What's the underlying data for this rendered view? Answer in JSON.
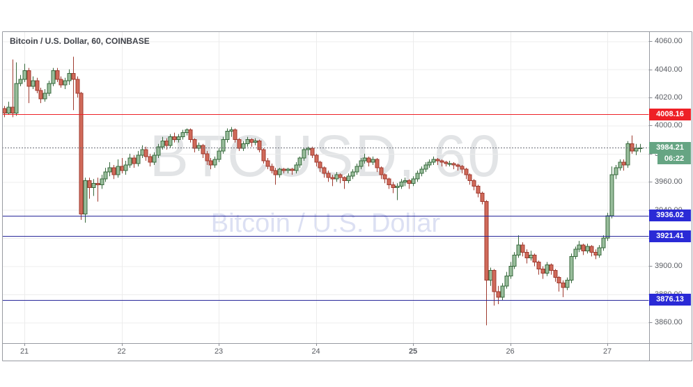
{
  "title": "Bitcoin / U.S. Dollar, 60, COINBASE",
  "watermark": {
    "line1": "BTCUSD, 60",
    "line2": "Bitcoin / U.S. Dollar"
  },
  "colors": {
    "background": "#ffffff",
    "grid": "#ececec",
    "frame": "#979aa1",
    "axis_text": "#5a5d63",
    "up_fill": "#98bd9b",
    "up_border": "#37693c",
    "down_fill": "#d06a5a",
    "down_border": "#9f3a2f",
    "resistance_line": "#ee2026",
    "resistance_label_bg": "#ee2026",
    "support_line": "#28289a",
    "support_label_bg": "#2a2ad6",
    "current_line": "#6a6d78",
    "current_label_bg": "#66a583"
  },
  "chart_data": {
    "type": "candlestick",
    "symbol": "BTCUSD",
    "interval": "60",
    "exchange": "COINBASE",
    "title": "Bitcoin / U.S. Dollar, 60, COINBASE",
    "y_ticks": [
      4060,
      4040,
      4020,
      4000,
      3980,
      3960,
      3940,
      3920,
      3900,
      3880,
      3860
    ],
    "y_range_visible": [
      3852,
      4064
    ],
    "x_ticks": [
      {
        "label": "21",
        "index": 5,
        "bold": false
      },
      {
        "label": "22",
        "index": 29,
        "bold": false
      },
      {
        "label": "23",
        "index": 53,
        "bold": false
      },
      {
        "label": "24",
        "index": 77,
        "bold": false
      },
      {
        "label": "25",
        "index": 101,
        "bold": true
      },
      {
        "label": "26",
        "index": 125,
        "bold": false
      },
      {
        "label": "27",
        "index": 149,
        "bold": false
      }
    ],
    "levels": [
      {
        "price": 4008.16,
        "label": "4008.16",
        "kind": "resistance"
      },
      {
        "price": 3936.02,
        "label": "3936.02",
        "kind": "support"
      },
      {
        "price": 3921.41,
        "label": "3921.41",
        "kind": "support"
      },
      {
        "price": 3876.13,
        "label": "3876.13",
        "kind": "support"
      }
    ],
    "current": {
      "price": 3984.21,
      "label": "3984.21",
      "countdown": "06:22"
    },
    "candles": [
      [
        4012,
        4014,
        4006,
        4009
      ],
      [
        4009,
        4017,
        4008,
        4013
      ],
      [
        4013,
        4047,
        4006,
        4009
      ],
      [
        4009,
        4045,
        4007,
        4030
      ],
      [
        4030,
        4036,
        4028,
        4033
      ],
      [
        4033,
        4044,
        4031,
        4039
      ],
      [
        4039,
        4041,
        4016,
        4028
      ],
      [
        4028,
        4035,
        4026,
        4032
      ],
      [
        4032,
        4034,
        4023,
        4025
      ],
      [
        4025,
        4027,
        4016,
        4019
      ],
      [
        4019,
        4026,
        4017,
        4023
      ],
      [
        4023,
        4032,
        4021,
        4030
      ],
      [
        4030,
        4041,
        4028,
        4039
      ],
      [
        4039,
        4041,
        4031,
        4033
      ],
      [
        4033,
        4035,
        4027,
        4029
      ],
      [
        4029,
        4034,
        4026,
        4032
      ],
      [
        4032,
        4040,
        4029,
        4037
      ],
      [
        4037,
        4049,
        4011,
        4033
      ],
      [
        4033,
        4035,
        4020,
        4023
      ],
      [
        4023,
        4024,
        3933,
        3937
      ],
      [
        3937,
        3963,
        3931,
        3961
      ],
      [
        3961,
        3963,
        3948,
        3956
      ],
      [
        3956,
        3962,
        3950,
        3959
      ],
      [
        3959,
        3963,
        3946,
        3958
      ],
      [
        3958,
        3965,
        3955,
        3962
      ],
      [
        3962,
        3970,
        3960,
        3967
      ],
      [
        3967,
        3974,
        3964,
        3970
      ],
      [
        3970,
        3972,
        3962,
        3965
      ],
      [
        3965,
        3976,
        3963,
        3971
      ],
      [
        3971,
        3977,
        3966,
        3968
      ],
      [
        3968,
        3975,
        3965,
        3972
      ],
      [
        3972,
        3980,
        3970,
        3977
      ],
      [
        3977,
        3979,
        3970,
        3973
      ],
      [
        3973,
        3982,
        3971,
        3979
      ],
      [
        3979,
        3986,
        3977,
        3983
      ],
      [
        3983,
        3985,
        3975,
        3978
      ],
      [
        3978,
        3980,
        3971,
        3974
      ],
      [
        3974,
        3981,
        3972,
        3979
      ],
      [
        3979,
        3987,
        3977,
        3985
      ],
      [
        3985,
        3992,
        3983,
        3989
      ],
      [
        3989,
        3991,
        3983,
        3986
      ],
      [
        3986,
        3994,
        3984,
        3992
      ],
      [
        3992,
        3995,
        3988,
        3990
      ],
      [
        3990,
        3994,
        3988,
        3992
      ],
      [
        3992,
        3997,
        3990,
        3995
      ],
      [
        3995,
        3998,
        3993,
        3997
      ],
      [
        3997,
        3998,
        3988,
        3990
      ],
      [
        3990,
        3991,
        3981,
        3984
      ],
      [
        3984,
        3988,
        3982,
        3986
      ],
      [
        3986,
        3987,
        3977,
        3980
      ],
      [
        3980,
        3982,
        3972,
        3975
      ],
      [
        3975,
        3977,
        3969,
        3972
      ],
      [
        3972,
        3978,
        3970,
        3976
      ],
      [
        3976,
        3984,
        3974,
        3982
      ],
      [
        3982,
        3992,
        3980,
        3990
      ],
      [
        3990,
        3998,
        3988,
        3996
      ],
      [
        3996,
        3999,
        3992,
        3997
      ],
      [
        3997,
        3998,
        3988,
        3990
      ],
      [
        3990,
        3991,
        3982,
        3984
      ],
      [
        3984,
        3989,
        3982,
        3987
      ],
      [
        3987,
        3992,
        3985,
        3990
      ],
      [
        3990,
        3991,
        3985,
        3988
      ],
      [
        3988,
        3991,
        3986,
        3989
      ],
      [
        3989,
        3990,
        3981,
        3983
      ],
      [
        3983,
        3984,
        3973,
        3975
      ],
      [
        3975,
        3977,
        3969,
        3971
      ],
      [
        3971,
        3973,
        3966,
        3968
      ],
      [
        3968,
        3970,
        3958,
        3965
      ],
      [
        3965,
        3970,
        3963,
        3969
      ],
      [
        3969,
        3970,
        3966,
        3968
      ],
      [
        3968,
        3970,
        3966,
        3969
      ],
      [
        3969,
        3970,
        3965,
        3968
      ],
      [
        3968,
        3974,
        3966,
        3972
      ],
      [
        3972,
        3978,
        3970,
        3977
      ],
      [
        3977,
        3984,
        3975,
        3983
      ],
      [
        3983,
        3985,
        3979,
        3984
      ],
      [
        3984,
        3985,
        3977,
        3979
      ],
      [
        3979,
        3980,
        3971,
        3974
      ],
      [
        3974,
        3975,
        3967,
        3970
      ],
      [
        3970,
        3971,
        3963,
        3966
      ],
      [
        3966,
        3968,
        3960,
        3963
      ],
      [
        3963,
        3965,
        3957,
        3962
      ],
      [
        3962,
        3967,
        3960,
        3965
      ],
      [
        3965,
        3966,
        3959,
        3963
      ],
      [
        3963,
        3964,
        3955,
        3961
      ],
      [
        3961,
        3966,
        3959,
        3964
      ],
      [
        3964,
        3969,
        3962,
        3967
      ],
      [
        3967,
        3973,
        3965,
        3971
      ],
      [
        3971,
        3977,
        3969,
        3975
      ],
      [
        3975,
        3980,
        3973,
        3977
      ],
      [
        3977,
        3978,
        3971,
        3974
      ],
      [
        3974,
        3978,
        3972,
        3976
      ],
      [
        3976,
        3977,
        3967,
        3970
      ],
      [
        3970,
        3971,
        3962,
        3965
      ],
      [
        3965,
        3966,
        3959,
        3962
      ],
      [
        3962,
        3963,
        3955,
        3958
      ],
      [
        3958,
        3960,
        3952,
        3956
      ],
      [
        3956,
        3959,
        3947,
        3957
      ],
      [
        3957,
        3962,
        3955,
        3960
      ],
      [
        3960,
        3963,
        3957,
        3961
      ],
      [
        3961,
        3962,
        3955,
        3959
      ],
      [
        3959,
        3964,
        3957,
        3962
      ],
      [
        3962,
        3968,
        3960,
        3966
      ],
      [
        3966,
        3971,
        3964,
        3969
      ],
      [
        3969,
        3974,
        3967,
        3972
      ],
      [
        3972,
        3976,
        3970,
        3974
      ],
      [
        3974,
        3978,
        3972,
        3976
      ],
      [
        3976,
        3977,
        3972,
        3975
      ],
      [
        3975,
        3976,
        3971,
        3974
      ],
      [
        3974,
        3975,
        3971,
        3973
      ],
      [
        3973,
        3975,
        3971,
        3973
      ],
      [
        3973,
        3974,
        3969,
        3972
      ],
      [
        3972,
        3973,
        3968,
        3971
      ],
      [
        3971,
        3972,
        3966,
        3969
      ],
      [
        3969,
        3970,
        3962,
        3965
      ],
      [
        3965,
        3966,
        3958,
        3961
      ],
      [
        3961,
        3962,
        3954,
        3957
      ],
      [
        3957,
        3958,
        3949,
        3952
      ],
      [
        3952,
        3953,
        3944,
        3946
      ],
      [
        3946,
        3947,
        3858,
        3890
      ],
      [
        3890,
        3899,
        3886,
        3897
      ],
      [
        3897,
        3898,
        3872,
        3882
      ],
      [
        3882,
        3886,
        3873,
        3878
      ],
      [
        3878,
        3888,
        3876,
        3886
      ],
      [
        3886,
        3896,
        3884,
        3893
      ],
      [
        3893,
        3903,
        3891,
        3900
      ],
      [
        3900,
        3910,
        3898,
        3908
      ],
      [
        3908,
        3922,
        3906,
        3915
      ],
      [
        3915,
        3917,
        3907,
        3910
      ],
      [
        3910,
        3912,
        3902,
        3906
      ],
      [
        3906,
        3911,
        3904,
        3908
      ],
      [
        3908,
        3909,
        3900,
        3903
      ],
      [
        3903,
        3904,
        3894,
        3898
      ],
      [
        3898,
        3900,
        3891,
        3895
      ],
      [
        3895,
        3903,
        3893,
        3901
      ],
      [
        3901,
        3902,
        3894,
        3897
      ],
      [
        3897,
        3898,
        3889,
        3892
      ],
      [
        3892,
        3893,
        3882,
        3888
      ],
      [
        3888,
        3890,
        3878,
        3885
      ],
      [
        3885,
        3892,
        3883,
        3890
      ],
      [
        3890,
        3909,
        3888,
        3907
      ],
      [
        3907,
        3914,
        3905,
        3912
      ],
      [
        3912,
        3918,
        3910,
        3915
      ],
      [
        3915,
        3916,
        3908,
        3911
      ],
      [
        3911,
        3916,
        3909,
        3914
      ],
      [
        3914,
        3915,
        3907,
        3910
      ],
      [
        3910,
        3912,
        3905,
        3908
      ],
      [
        3908,
        3915,
        3906,
        3913
      ],
      [
        3913,
        3922,
        3911,
        3920
      ],
      [
        3920,
        3938,
        3918,
        3936
      ],
      [
        3936,
        3971,
        3934,
        3965
      ],
      [
        3965,
        3972,
        3962,
        3970
      ],
      [
        3970,
        3976,
        3968,
        3974
      ],
      [
        3974,
        3976,
        3968,
        3972
      ],
      [
        3972,
        3989,
        3970,
        3987
      ],
      [
        3987,
        3993,
        3980,
        3982
      ],
      [
        3982,
        3987,
        3979,
        3984
      ],
      [
        3984,
        3987,
        3981,
        3984.21
      ]
    ]
  }
}
